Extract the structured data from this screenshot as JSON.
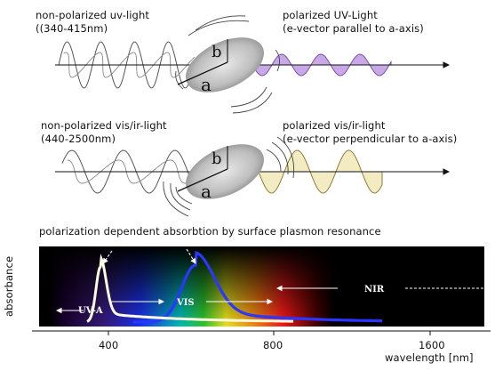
{
  "panel_uv": {
    "left_line1": "non-polarized uv-light",
    "left_line2": "((340-415nm)",
    "right_line1": "polarized UV-Light",
    "right_line2": "(e-vector parallel to a-axis)",
    "axis_a": "a",
    "axis_b": "b"
  },
  "panel_vis": {
    "left_line1": "non-polarized vis/ir-light",
    "left_line2": "(440-2500nm)",
    "right_line1": "polarized vis/ir-light",
    "right_line2": "(e-vector perpendicular to a-axis)",
    "axis_a": "a",
    "axis_b": "b"
  },
  "spectrum": {
    "title": "polarization dependent absorbtion by surface plasmon resonance",
    "ylabel": "absorbance",
    "xlabel": "wavelength [nm]",
    "ticks": [
      "400",
      "800",
      "1600"
    ],
    "band_uva": "UV-A",
    "band_vis": "VIS",
    "band_nir": "NIR"
  },
  "colors": {
    "uv_wave_fill": "#c9a8e8",
    "vis_wave_fill": "#f3ecc2",
    "peak_white": "#fffbe0",
    "peak_blue": "#2b36ff",
    "background": "#000000"
  }
}
